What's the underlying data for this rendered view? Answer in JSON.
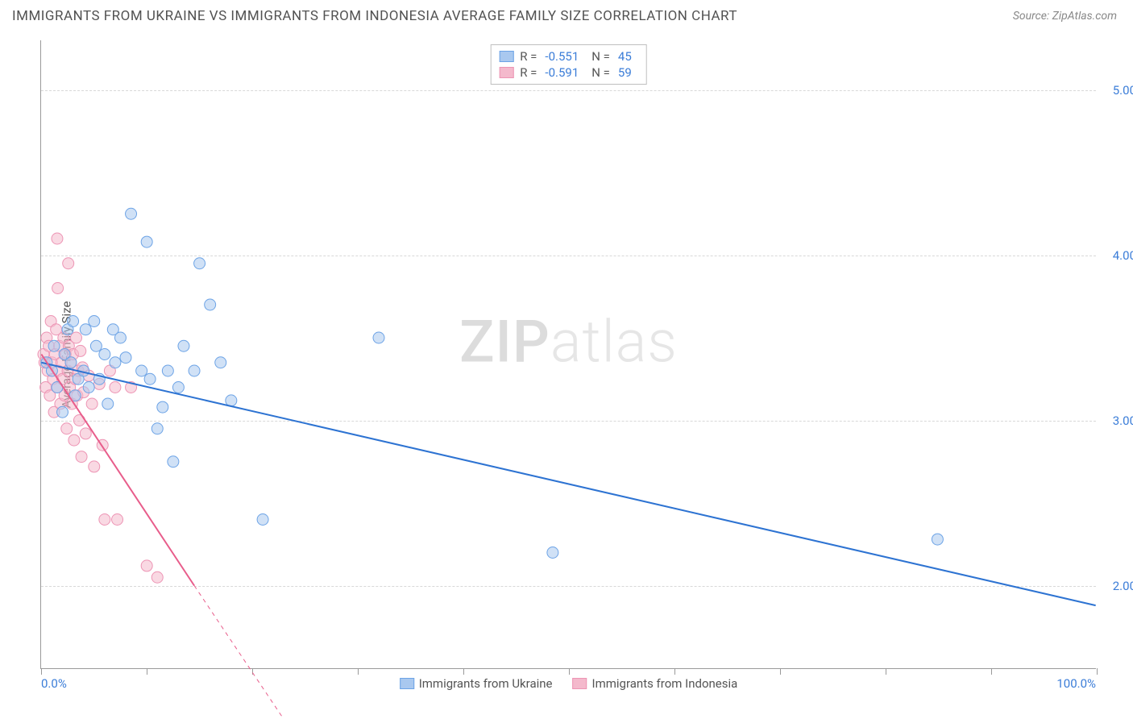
{
  "header": {
    "title": "IMMIGRANTS FROM UKRAINE VS IMMIGRANTS FROM INDONESIA AVERAGE FAMILY SIZE CORRELATION CHART",
    "source": "Source: ZipAtlas.com"
  },
  "chart": {
    "type": "scatter",
    "background_color": "#ffffff",
    "grid_color": "#d8d8d8",
    "axis_color": "#9a9a9a",
    "xlim": [
      0,
      100
    ],
    "ylim": [
      1.5,
      5.3
    ],
    "xticks_pct": [
      0,
      10,
      20,
      30,
      40,
      50,
      60,
      70,
      80,
      90,
      100
    ],
    "yticks": [
      2.0,
      3.0,
      4.0,
      5.0
    ],
    "ytick_labels": [
      "2.00",
      "3.00",
      "4.00",
      "5.00"
    ],
    "xmin_label": "0.0%",
    "xmax_label": "100.0%",
    "ylabel": "Average Family Size",
    "label_fontsize": 15,
    "tick_fontsize": 15,
    "tick_color": "#3b7dd8",
    "marker_radius": 7,
    "marker_opacity": 0.55,
    "line_width": 2,
    "watermark_text_bold": "ZIP",
    "watermark_text_light": "atlas",
    "series": [
      {
        "name": "Immigrants from Ukraine",
        "color_fill": "#a9c8ef",
        "color_stroke": "#6ca3e6",
        "line_color": "#2d73d2",
        "r_label": "R =",
        "r_value": "-0.551",
        "n_label": "N =",
        "n_value": "45",
        "trend_solid": {
          "x1": 0,
          "y1": 3.35,
          "x2": 100,
          "y2": 1.88
        },
        "points": [
          [
            0.5,
            3.35
          ],
          [
            1.0,
            3.3
          ],
          [
            1.2,
            3.45
          ],
          [
            1.5,
            3.2
          ],
          [
            2.0,
            3.05
          ],
          [
            2.2,
            3.4
          ],
          [
            2.5,
            3.55
          ],
          [
            2.8,
            3.35
          ],
          [
            3.0,
            3.6
          ],
          [
            3.2,
            3.15
          ],
          [
            3.5,
            3.25
          ],
          [
            4.0,
            3.3
          ],
          [
            4.2,
            3.55
          ],
          [
            4.5,
            3.2
          ],
          [
            5.0,
            3.6
          ],
          [
            5.2,
            3.45
          ],
          [
            5.5,
            3.25
          ],
          [
            6.0,
            3.4
          ],
          [
            6.3,
            3.1
          ],
          [
            6.8,
            3.55
          ],
          [
            7.0,
            3.35
          ],
          [
            7.5,
            3.5
          ],
          [
            8.0,
            3.38
          ],
          [
            8.5,
            4.25
          ],
          [
            9.5,
            3.3
          ],
          [
            10.0,
            4.08
          ],
          [
            10.3,
            3.25
          ],
          [
            11.0,
            2.95
          ],
          [
            11.5,
            3.08
          ],
          [
            12.0,
            3.3
          ],
          [
            12.5,
            2.75
          ],
          [
            13.0,
            3.2
          ],
          [
            13.5,
            3.45
          ],
          [
            14.5,
            3.3
          ],
          [
            15.0,
            3.95
          ],
          [
            16.0,
            3.7
          ],
          [
            17.0,
            3.35
          ],
          [
            18.0,
            3.12
          ],
          [
            21.0,
            2.4
          ],
          [
            32.0,
            3.5
          ],
          [
            48.5,
            2.2
          ],
          [
            85.0,
            2.28
          ]
        ]
      },
      {
        "name": "Immigrants from Indonesia",
        "color_fill": "#f4b9cc",
        "color_stroke": "#ed94b4",
        "line_color": "#e85d8b",
        "r_label": "R =",
        "r_value": "-0.591",
        "n_label": "N =",
        "n_value": "59",
        "trend_solid": {
          "x1": 0,
          "y1": 3.4,
          "x2": 14.5,
          "y2": 2.0
        },
        "trend_dashed": {
          "x1": 14.5,
          "y1": 2.0,
          "x2": 25,
          "y2": 1.0
        },
        "points": [
          [
            0.2,
            3.4
          ],
          [
            0.3,
            3.35
          ],
          [
            0.4,
            3.2
          ],
          [
            0.5,
            3.5
          ],
          [
            0.6,
            3.3
          ],
          [
            0.7,
            3.45
          ],
          [
            0.8,
            3.15
          ],
          [
            0.9,
            3.6
          ],
          [
            1.0,
            3.35
          ],
          [
            1.1,
            3.25
          ],
          [
            1.2,
            3.05
          ],
          [
            1.3,
            3.4
          ],
          [
            1.4,
            3.55
          ],
          [
            1.5,
            3.2
          ],
          [
            1.55,
            3.8
          ],
          [
            1.5,
            4.1
          ],
          [
            1.6,
            3.3
          ],
          [
            1.7,
            3.45
          ],
          [
            1.8,
            3.1
          ],
          [
            1.9,
            3.35
          ],
          [
            2.0,
            3.25
          ],
          [
            2.1,
            3.5
          ],
          [
            2.2,
            3.15
          ],
          [
            2.3,
            3.4
          ],
          [
            2.4,
            2.95
          ],
          [
            2.5,
            3.3
          ],
          [
            2.55,
            3.95
          ],
          [
            2.6,
            3.45
          ],
          [
            2.7,
            3.2
          ],
          [
            2.8,
            3.35
          ],
          [
            2.9,
            3.1
          ],
          [
            3.0,
            3.4
          ],
          [
            3.1,
            2.88
          ],
          [
            3.2,
            3.25
          ],
          [
            3.3,
            3.5
          ],
          [
            3.4,
            3.15
          ],
          [
            3.5,
            3.3
          ],
          [
            3.6,
            3.0
          ],
          [
            3.7,
            3.42
          ],
          [
            3.8,
            2.78
          ],
          [
            3.9,
            3.32
          ],
          [
            4.0,
            3.17
          ],
          [
            4.2,
            2.92
          ],
          [
            4.5,
            3.27
          ],
          [
            4.8,
            3.1
          ],
          [
            5.0,
            2.72
          ],
          [
            5.5,
            3.22
          ],
          [
            5.8,
            2.85
          ],
          [
            6.0,
            2.4
          ],
          [
            6.5,
            3.3
          ],
          [
            7.0,
            3.2
          ],
          [
            7.2,
            2.4
          ],
          [
            8.5,
            3.2
          ],
          [
            10.0,
            2.12
          ],
          [
            11.0,
            2.05
          ]
        ]
      }
    ]
  }
}
